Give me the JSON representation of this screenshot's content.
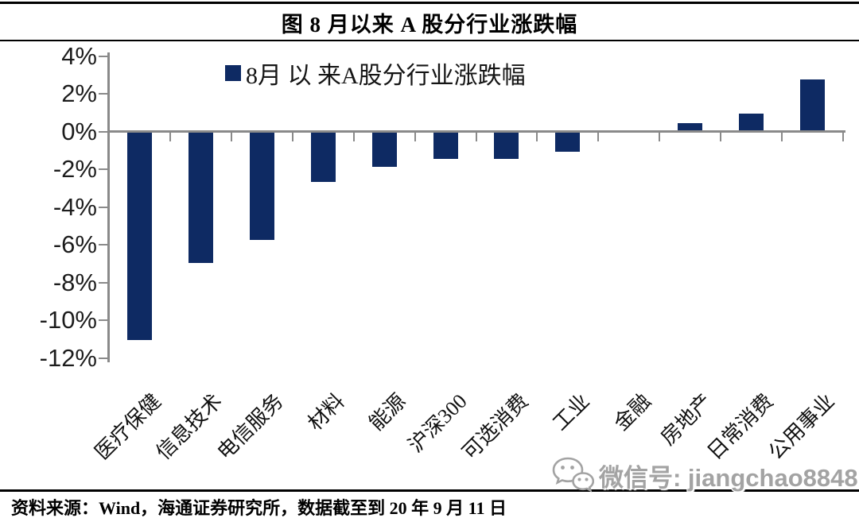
{
  "figure": {
    "title": "图  8 月以来 A 股分行业涨跌幅"
  },
  "chart_data": {
    "type": "bar",
    "title": "图  8 月以来 A 股分行业涨跌幅",
    "legend": "8月 以 来A股分行业涨跌幅",
    "legend_position": "top-center",
    "categories": [
      "医疗保健",
      "信息技术",
      "电信服务",
      "材料",
      "能源",
      "沪深300",
      "可选消费",
      "工业",
      "金融",
      "房地产",
      "日常消费",
      "公用事业"
    ],
    "values": [
      -11.0,
      -6.9,
      -5.7,
      -2.6,
      -1.8,
      -1.4,
      -1.4,
      -1.0,
      0.0,
      0.4,
      0.9,
      2.7
    ],
    "unit": "%",
    "xlabel": "",
    "ylabel": "",
    "ylim": [
      -12,
      4
    ],
    "ytick_values": [
      4,
      2,
      0,
      -2,
      -4,
      -6,
      -8,
      -10,
      -12
    ],
    "ytick_labels": [
      "4%",
      "2%",
      "0%",
      "-2%",
      "-4%",
      "-6%",
      "-8%",
      "-10%",
      "-12%"
    ],
    "grid": false,
    "bar_color": "#0E2A63",
    "axis_color": "#8A8A8A"
  },
  "watermark": {
    "text": "微信号: jiangchao8848",
    "icon": "wechat-icon",
    "color": "#A3A3A3"
  },
  "footer": {
    "source": "资料来源：Wind，海通证券研究所，数据截至到 20 年 9 月 11 日"
  }
}
